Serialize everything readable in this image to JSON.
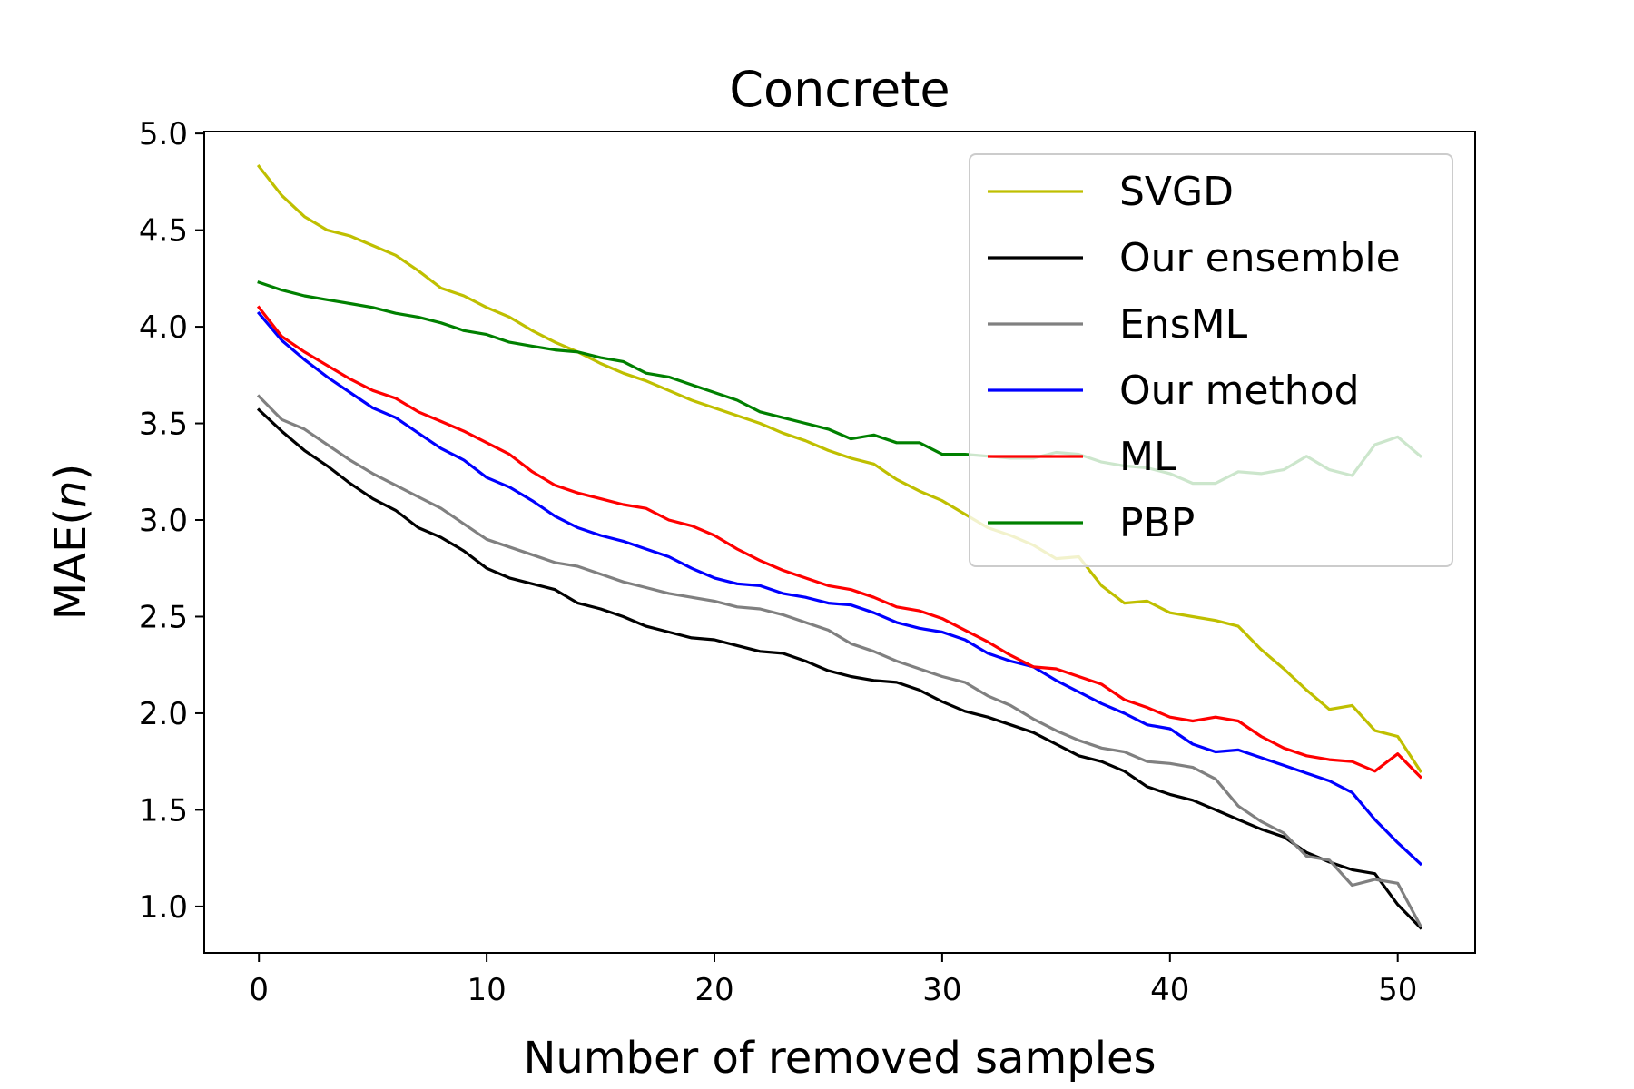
{
  "chart_data": {
    "type": "line",
    "title": "Concrete",
    "xlabel": "Number of removed samples",
    "ylabel_prefix": "MAE(",
    "ylabel_var": "n",
    "ylabel_suffix": ")",
    "xlim": [
      -2.4,
      53.4
    ],
    "ylim": [
      0.76,
      5.01
    ],
    "xticks": [
      0,
      10,
      20,
      30,
      40,
      50
    ],
    "xtick_labels": [
      "0",
      "10",
      "20",
      "30",
      "40",
      "50"
    ],
    "yticks": [
      1.0,
      1.5,
      2.0,
      2.5,
      3.0,
      3.5,
      4.0,
      4.5,
      5.0
    ],
    "ytick_labels": [
      "1.0",
      "1.5",
      "2.0",
      "2.5",
      "3.0",
      "3.5",
      "4.0",
      "4.5",
      "5.0"
    ],
    "legend_position": "top-right",
    "series": [
      {
        "name": "SVGD",
        "color": "#bfbf00",
        "values": [
          4.83,
          4.68,
          4.57,
          4.5,
          4.47,
          4.42,
          4.37,
          4.29,
          4.2,
          4.16,
          4.1,
          4.05,
          3.98,
          3.92,
          3.87,
          3.81,
          3.76,
          3.72,
          3.67,
          3.62,
          3.58,
          3.54,
          3.5,
          3.45,
          3.41,
          3.36,
          3.32,
          3.29,
          3.21,
          3.15,
          3.1,
          3.03,
          2.96,
          2.92,
          2.87,
          2.8,
          2.81,
          2.66,
          2.57,
          2.58,
          2.52,
          2.5,
          2.48,
          2.45,
          2.33,
          2.23,
          2.12,
          2.02,
          2.04,
          1.91,
          1.88,
          1.7
        ]
      },
      {
        "name": "Our ensemble",
        "color": "#000000",
        "values": [
          3.57,
          3.46,
          3.36,
          3.28,
          3.19,
          3.11,
          3.05,
          2.96,
          2.91,
          2.84,
          2.75,
          2.7,
          2.67,
          2.64,
          2.57,
          2.54,
          2.5,
          2.45,
          2.42,
          2.39,
          2.38,
          2.35,
          2.32,
          2.31,
          2.27,
          2.22,
          2.19,
          2.17,
          2.16,
          2.12,
          2.06,
          2.01,
          1.98,
          1.94,
          1.9,
          1.84,
          1.78,
          1.75,
          1.7,
          1.62,
          1.58,
          1.55,
          1.5,
          1.45,
          1.4,
          1.36,
          1.28,
          1.23,
          1.19,
          1.17,
          1.01,
          0.89
        ]
      },
      {
        "name": "EnsML",
        "color": "#808080",
        "values": [
          3.64,
          3.52,
          3.47,
          3.39,
          3.31,
          3.24,
          3.18,
          3.12,
          3.06,
          2.98,
          2.9,
          2.86,
          2.82,
          2.78,
          2.76,
          2.72,
          2.68,
          2.65,
          2.62,
          2.6,
          2.58,
          2.55,
          2.54,
          2.51,
          2.47,
          2.43,
          2.36,
          2.32,
          2.27,
          2.23,
          2.19,
          2.16,
          2.09,
          2.04,
          1.97,
          1.91,
          1.86,
          1.82,
          1.8,
          1.75,
          1.74,
          1.72,
          1.66,
          1.52,
          1.44,
          1.38,
          1.26,
          1.24,
          1.11,
          1.14,
          1.12,
          0.9
        ]
      },
      {
        "name": "Our method",
        "color": "#0000ff",
        "values": [
          4.07,
          3.93,
          3.83,
          3.74,
          3.66,
          3.58,
          3.53,
          3.45,
          3.37,
          3.31,
          3.22,
          3.17,
          3.1,
          3.02,
          2.96,
          2.92,
          2.89,
          2.85,
          2.81,
          2.75,
          2.7,
          2.67,
          2.66,
          2.62,
          2.6,
          2.57,
          2.56,
          2.52,
          2.47,
          2.44,
          2.42,
          2.38,
          2.31,
          2.27,
          2.24,
          2.17,
          2.11,
          2.05,
          2.0,
          1.94,
          1.92,
          1.84,
          1.8,
          1.81,
          1.77,
          1.73,
          1.69,
          1.65,
          1.59,
          1.45,
          1.33,
          1.22
        ]
      },
      {
        "name": "ML",
        "color": "#ff0000",
        "values": [
          4.1,
          3.95,
          3.87,
          3.8,
          3.73,
          3.67,
          3.63,
          3.56,
          3.51,
          3.46,
          3.4,
          3.34,
          3.25,
          3.18,
          3.14,
          3.11,
          3.08,
          3.06,
          3.0,
          2.97,
          2.92,
          2.85,
          2.79,
          2.74,
          2.7,
          2.66,
          2.64,
          2.6,
          2.55,
          2.53,
          2.49,
          2.43,
          2.37,
          2.3,
          2.24,
          2.23,
          2.19,
          2.15,
          2.07,
          2.03,
          1.98,
          1.96,
          1.98,
          1.96,
          1.88,
          1.82,
          1.78,
          1.76,
          1.75,
          1.7,
          1.79,
          1.67
        ]
      },
      {
        "name": "PBP",
        "color": "#008000",
        "values": [
          4.23,
          4.19,
          4.16,
          4.14,
          4.12,
          4.1,
          4.07,
          4.05,
          4.02,
          3.98,
          3.96,
          3.92,
          3.9,
          3.88,
          3.87,
          3.84,
          3.82,
          3.76,
          3.74,
          3.7,
          3.66,
          3.62,
          3.56,
          3.53,
          3.5,
          3.47,
          3.42,
          3.44,
          3.4,
          3.4,
          3.34,
          3.34,
          3.33,
          3.32,
          3.32,
          3.35,
          3.34,
          3.3,
          3.28,
          3.27,
          3.24,
          3.19,
          3.19,
          3.25,
          3.24,
          3.26,
          3.33,
          3.26,
          3.23,
          3.39,
          3.43,
          3.33
        ]
      }
    ]
  }
}
